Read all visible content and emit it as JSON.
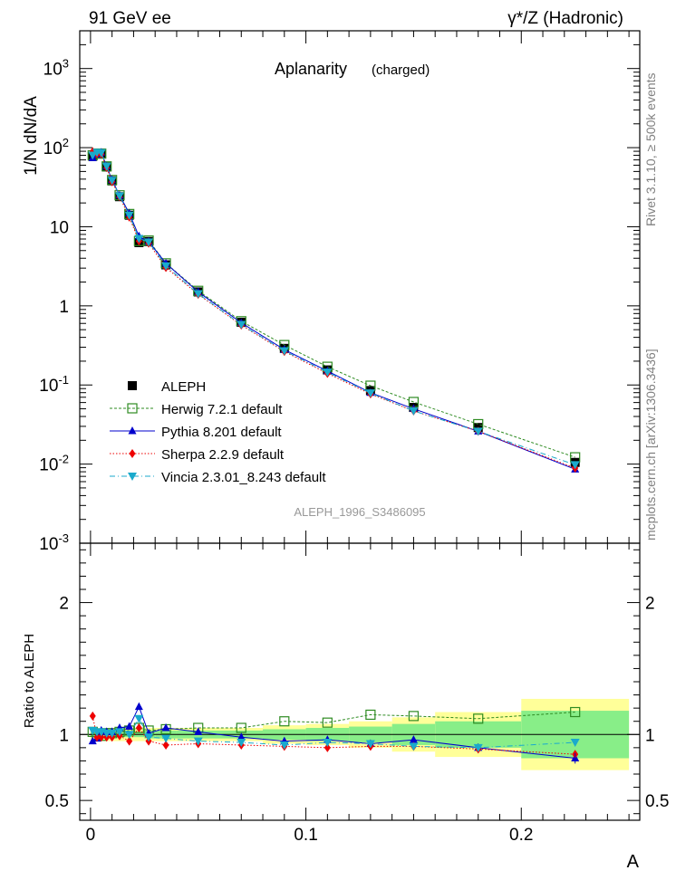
{
  "header": {
    "left": "91 GeV ee",
    "right": "γ*/Z (Hadronic)"
  },
  "plot_title": {
    "main": "Aplanarity",
    "sub": "(charged)"
  },
  "analysis_label": "ALEPH_1996_S3486095",
  "side_labels": {
    "upper": "Rivet 3.1.10, ≥ 500k events",
    "lower": "mcplots.cern.ch [arXiv:1306.3436]"
  },
  "colors": {
    "data": "#000000",
    "herwig": "#2e8b22",
    "pythia": "#0000cc",
    "sherpa": "#ee0000",
    "vincia": "#1aaacc",
    "band_outer": "#ffff99",
    "band_inner": "#88ee88"
  },
  "chart_data": [
    {
      "type": "scatter",
      "panel": "main",
      "ylabel": "1/N dN/dA",
      "yscale": "log",
      "ylim": [
        0.001,
        3000
      ],
      "xlim": [
        -0.005,
        0.255
      ],
      "ytick_labels": [
        "10^-3",
        "10^-2",
        "10^-1",
        "1",
        "10",
        "10^2",
        "10^3"
      ],
      "legend_position": "middle-left",
      "x": [
        0.001,
        0.003,
        0.005,
        0.0075,
        0.01,
        0.0135,
        0.018,
        0.0225,
        0.027,
        0.035,
        0.05,
        0.07,
        0.09,
        0.11,
        0.13,
        0.15,
        0.18,
        0.225
      ],
      "series": [
        {
          "name": "ALEPH",
          "style": "data",
          "values": [
            78,
            85,
            85,
            57,
            38,
            24,
            14,
            6.3,
            6.5,
            3.3,
            1.5,
            0.62,
            0.29,
            0.155,
            0.085,
            0.052,
            0.029,
            0.0105
          ]
        },
        {
          "name": "Herwig 7.2.1 default",
          "style": "herwig",
          "values": [
            80,
            84,
            84,
            58,
            39,
            25,
            14.5,
            6.6,
            6.7,
            3.45,
            1.55,
            0.64,
            0.32,
            0.17,
            0.098,
            0.061,
            0.032,
            0.0122
          ]
        },
        {
          "name": "Pythia 8.201 default",
          "style": "pythia",
          "values": [
            74,
            82,
            87,
            58,
            39,
            25,
            14.8,
            7.6,
            6.5,
            3.45,
            1.5,
            0.61,
            0.28,
            0.15,
            0.08,
            0.05,
            0.026,
            0.0086
          ]
        },
        {
          "name": "Sherpa 2.2.9 default",
          "style": "sherpa",
          "values": [
            89,
            83,
            83,
            56,
            37,
            24,
            13.2,
            6.6,
            6.2,
            3.05,
            1.4,
            0.57,
            0.265,
            0.14,
            0.077,
            0.047,
            0.026,
            0.0089
          ]
        },
        {
          "name": "Vincia 2.3.01_8.243 default",
          "style": "vincia",
          "values": [
            80,
            87,
            86,
            58,
            38.5,
            24.5,
            14,
            7.1,
            6.4,
            3.2,
            1.42,
            0.58,
            0.27,
            0.145,
            0.079,
            0.047,
            0.026,
            0.0098
          ]
        }
      ]
    },
    {
      "type": "scatter",
      "panel": "ratio",
      "ylabel": "Ratio to ALEPH",
      "xlabel": "A",
      "ylim": [
        0.35,
        2.45
      ],
      "xlim": [
        -0.005,
        0.255
      ],
      "ytick_labels": [
        "0.5",
        "1",
        "2"
      ],
      "xtick_labels": [
        "0",
        "0.1",
        "0.2"
      ],
      "band_bins": [
        {
          "x0": 0,
          "x1": 0.002,
          "outer": 0.05,
          "inner": 0.02
        },
        {
          "x0": 0.002,
          "x1": 0.004,
          "outer": 0.05,
          "inner": 0.02
        },
        {
          "x0": 0.004,
          "x1": 0.006,
          "outer": 0.05,
          "inner": 0.02
        },
        {
          "x0": 0.006,
          "x1": 0.009,
          "outer": 0.05,
          "inner": 0.02
        },
        {
          "x0": 0.009,
          "x1": 0.011,
          "outer": 0.05,
          "inner": 0.02
        },
        {
          "x0": 0.011,
          "x1": 0.016,
          "outer": 0.05,
          "inner": 0.02
        },
        {
          "x0": 0.016,
          "x1": 0.02,
          "outer": 0.05,
          "inner": 0.02
        },
        {
          "x0": 0.02,
          "x1": 0.025,
          "outer": 0.05,
          "inner": 0.02
        },
        {
          "x0": 0.025,
          "x1": 0.03,
          "outer": 0.05,
          "inner": 0.03
        },
        {
          "x0": 0.03,
          "x1": 0.04,
          "outer": 0.05,
          "inner": 0.03
        },
        {
          "x0": 0.04,
          "x1": 0.06,
          "outer": 0.05,
          "inner": 0.03
        },
        {
          "x0": 0.06,
          "x1": 0.08,
          "outer": 0.05,
          "inner": 0.03
        },
        {
          "x0": 0.08,
          "x1": 0.1,
          "outer": 0.07,
          "inner": 0.04
        },
        {
          "x0": 0.1,
          "x1": 0.12,
          "outer": 0.08,
          "inner": 0.05
        },
        {
          "x0": 0.12,
          "x1": 0.14,
          "outer": 0.1,
          "inner": 0.06
        },
        {
          "x0": 0.14,
          "x1": 0.16,
          "outer": 0.13,
          "inner": 0.08
        },
        {
          "x0": 0.16,
          "x1": 0.2,
          "outer": 0.17,
          "inner": 0.1
        },
        {
          "x0": 0.2,
          "x1": 0.25,
          "outer": 0.27,
          "inner": 0.18
        }
      ],
      "x": [
        0.001,
        0.003,
        0.005,
        0.0075,
        0.01,
        0.0135,
        0.018,
        0.0225,
        0.027,
        0.035,
        0.05,
        0.07,
        0.09,
        0.11,
        0.13,
        0.15,
        0.18,
        0.225
      ],
      "series": [
        {
          "name": "Herwig 7.2.1 default",
          "style": "herwig",
          "values": [
            1.02,
            0.99,
            0.99,
            1.01,
            1.01,
            1.02,
            1.03,
            1.05,
            1.03,
            1.04,
            1.05,
            1.05,
            1.1,
            1.09,
            1.15,
            1.14,
            1.12,
            1.17
          ]
        },
        {
          "name": "Pythia 8.201 default",
          "style": "pythia",
          "values": [
            0.95,
            0.97,
            1.03,
            1.02,
            1.02,
            1.05,
            1.06,
            1.21,
            1.01,
            1.05,
            1.02,
            0.98,
            0.95,
            0.96,
            0.93,
            0.96,
            0.9,
            0.82
          ]
        },
        {
          "name": "Sherpa 2.2.9 default",
          "style": "sherpa",
          "values": [
            1.14,
            0.98,
            0.98,
            0.98,
            0.98,
            0.99,
            0.95,
            1.05,
            0.95,
            0.92,
            0.93,
            0.92,
            0.91,
            0.9,
            0.91,
            0.91,
            0.89,
            0.85
          ]
        },
        {
          "name": "Vincia 2.3.01_8.243 default",
          "style": "vincia",
          "values": [
            1.03,
            1.02,
            1.02,
            1.01,
            1.01,
            1.02,
            1.0,
            1.12,
            0.98,
            0.97,
            0.95,
            0.94,
            0.92,
            0.94,
            0.93,
            0.91,
            0.9,
            0.94
          ]
        }
      ]
    }
  ]
}
